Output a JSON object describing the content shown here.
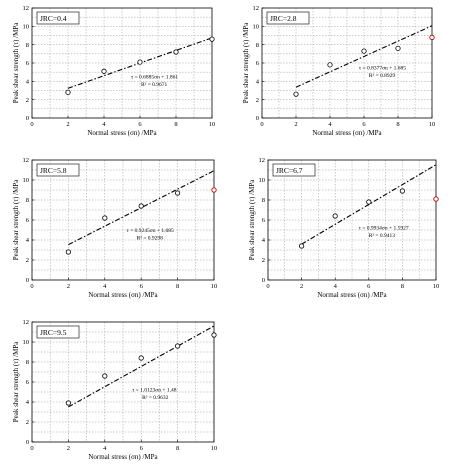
{
  "chart_data": [
    {
      "type": "scatter",
      "jrc_label": "JRC=0.4",
      "xlabel": "Normal stress (σn) /MPa",
      "ylabel": "Peak shear strength (τ) /MPa",
      "xlim": [
        0,
        10
      ],
      "ylim": [
        0,
        12
      ],
      "xticks": [
        "0",
        "2",
        "4",
        "6",
        "8",
        "10"
      ],
      "yticks": [
        "0",
        "2",
        "4",
        "6",
        "8",
        "10",
        "12"
      ],
      "grid": true,
      "points": [
        {
          "x": 2,
          "y": 2.8,
          "outlier": false
        },
        {
          "x": 4,
          "y": 5.1,
          "outlier": false
        },
        {
          "x": 6,
          "y": 6.1,
          "outlier": false
        },
        {
          "x": 8,
          "y": 7.2,
          "outlier": false
        },
        {
          "x": 10,
          "y": 8.6,
          "outlier": false
        }
      ],
      "fit": {
        "slope": 0.6885,
        "intercept": 1.861,
        "x_range": [
          2,
          10
        ]
      },
      "equation": "τ = 0.6885σn + 1.861",
      "r2": "R² = 0.9671"
    },
    {
      "type": "scatter",
      "jrc_label": "JRC=2.8",
      "xlabel": "Normal stress (σn) /MPa",
      "ylabel": "Peak shear strength (τ) /MPa",
      "xlim": [
        0,
        10
      ],
      "ylim": [
        0,
        12
      ],
      "xticks": [
        "0",
        "2",
        "4",
        "6",
        "8",
        "10"
      ],
      "yticks": [
        "0",
        "2",
        "4",
        "6",
        "8",
        "10",
        "12"
      ],
      "grid": true,
      "points": [
        {
          "x": 2,
          "y": 2.6,
          "outlier": false
        },
        {
          "x": 4,
          "y": 5.8,
          "outlier": false
        },
        {
          "x": 6,
          "y": 7.3,
          "outlier": false
        },
        {
          "x": 8,
          "y": 7.6,
          "outlier": false
        },
        {
          "x": 10,
          "y": 8.8,
          "outlier": true
        }
      ],
      "fit": {
        "slope": 0.8377,
        "intercept": 1.685,
        "x_range": [
          2,
          10
        ]
      },
      "equation": "τ = 0.8377σn + 1.685",
      "r2": "R² = 0.8929"
    },
    {
      "type": "scatter",
      "jrc_label": "JRC=5.8",
      "xlabel": "Normal stress (σn) /MPa",
      "ylabel": "Peak shear strength (τ) /MPa",
      "xlim": [
        0,
        10
      ],
      "ylim": [
        0,
        12
      ],
      "xticks": [
        "0",
        "2",
        "4",
        "6",
        "8",
        "10"
      ],
      "yticks": [
        "0",
        "2",
        "4",
        "6",
        "8",
        "10",
        "12"
      ],
      "grid": true,
      "points": [
        {
          "x": 2,
          "y": 2.8,
          "outlier": false
        },
        {
          "x": 4,
          "y": 6.2,
          "outlier": false
        },
        {
          "x": 6,
          "y": 7.4,
          "outlier": false
        },
        {
          "x": 8,
          "y": 8.7,
          "outlier": false
        },
        {
          "x": 10,
          "y": 9.0,
          "outlier": true
        }
      ],
      "fit": {
        "slope": 0.9245,
        "intercept": 1.685,
        "x_range": [
          2,
          10
        ]
      },
      "equation": "τ = 0.9245σn + 1.685",
      "r2": "R² = 0.9298"
    },
    {
      "type": "scatter",
      "jrc_label": "JRC=6.7",
      "xlabel": "Normal stress (σn) /MPa",
      "ylabel": "Peak shear strength (τ) /MPa",
      "xlim": [
        0,
        10
      ],
      "ylim": [
        0,
        12
      ],
      "xticks": [
        "0",
        "2",
        "4",
        "6",
        "8",
        "10"
      ],
      "yticks": [
        "0",
        "2",
        "4",
        "6",
        "8",
        "10",
        "12"
      ],
      "grid": true,
      "points": [
        {
          "x": 2,
          "y": 3.4,
          "outlier": false
        },
        {
          "x": 4,
          "y": 6.4,
          "outlier": false
        },
        {
          "x": 6,
          "y": 7.8,
          "outlier": false
        },
        {
          "x": 8,
          "y": 8.9,
          "outlier": false
        },
        {
          "x": 10,
          "y": 8.1,
          "outlier": true
        }
      ],
      "fit": {
        "slope": 0.9934,
        "intercept": 1.5927,
        "x_range": [
          2,
          10
        ]
      },
      "equation": "τ = 0.9934σn + 1.5927",
      "r2": "R² = 0.9413"
    },
    {
      "type": "scatter",
      "jrc_label": "JRC=9.5",
      "xlabel": "Normal stress (σn) /MPa",
      "ylabel": "Peak shear strength (τ) /MPa",
      "xlim": [
        0,
        10
      ],
      "ylim": [
        0,
        12
      ],
      "xticks": [
        "0",
        "2",
        "4",
        "6",
        "8",
        "10"
      ],
      "yticks": [
        "0",
        "2",
        "4",
        "6",
        "8",
        "10",
        "12"
      ],
      "grid": true,
      "points": [
        {
          "x": 2,
          "y": 3.9,
          "outlier": false
        },
        {
          "x": 4,
          "y": 6.6,
          "outlier": false
        },
        {
          "x": 6,
          "y": 8.4,
          "outlier": false
        },
        {
          "x": 8,
          "y": 9.6,
          "outlier": false
        },
        {
          "x": 10,
          "y": 10.7,
          "outlier": false
        }
      ],
      "fit": {
        "slope": 1.0123,
        "intercept": 1.48,
        "x_range": [
          2,
          10
        ]
      },
      "equation": "τ = 1.0123σn + 1.48",
      "r2": "R² = 0.9632"
    }
  ]
}
